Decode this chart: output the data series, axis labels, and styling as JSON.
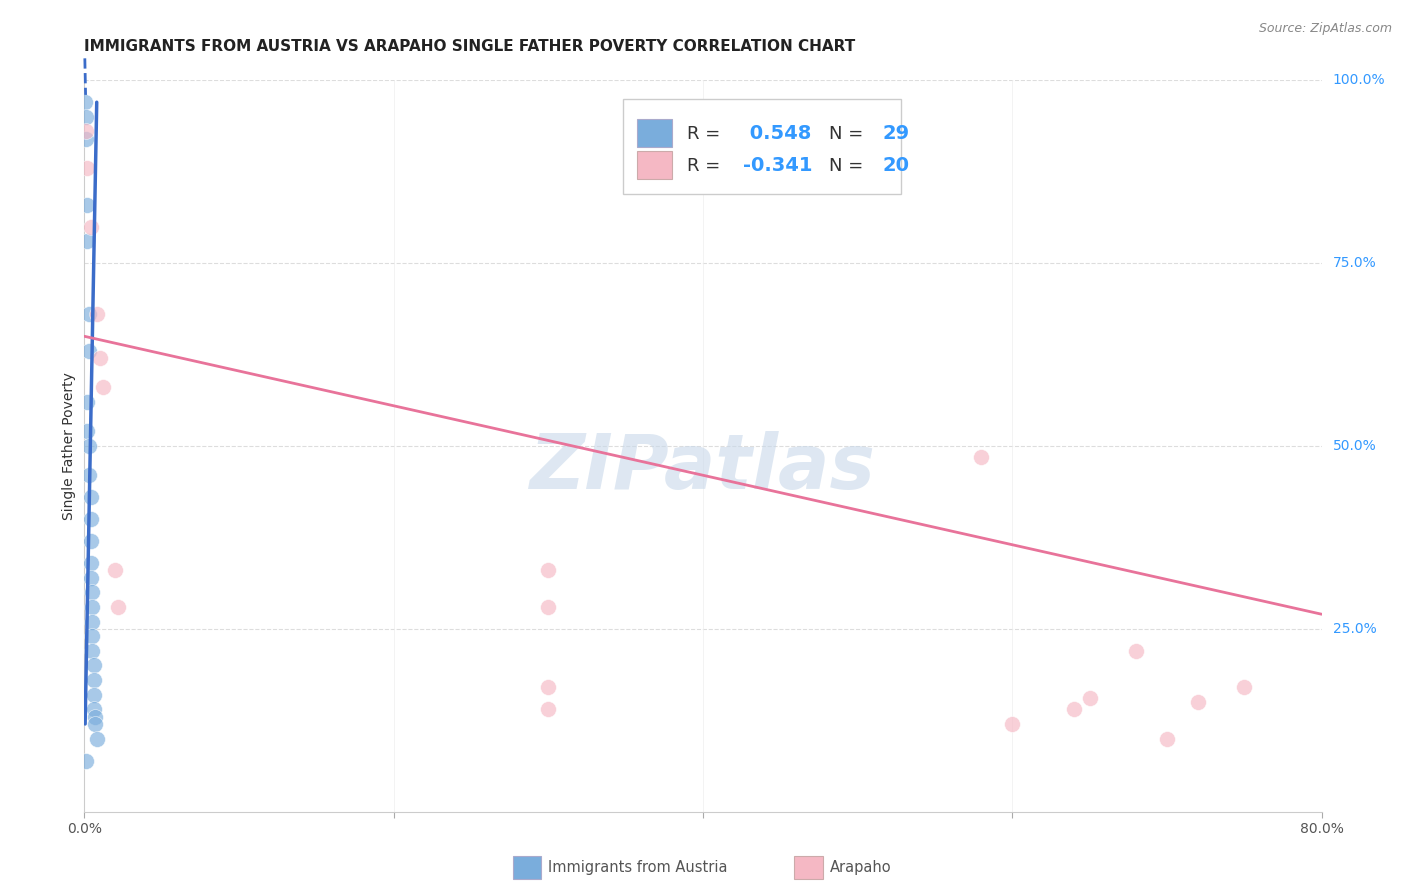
{
  "title": "IMMIGRANTS FROM AUSTRIA VS ARAPAHO SINGLE FATHER POVERTY CORRELATION CHART",
  "source": "Source: ZipAtlas.com",
  "ylabel": "Single Father Poverty",
  "xlim": [
    0,
    0.8
  ],
  "ylim": [
    0,
    1.0
  ],
  "xticks": [
    0.0,
    0.2,
    0.4,
    0.6,
    0.8
  ],
  "xtick_labels": [
    "0.0%",
    "",
    "",
    "",
    "80.0%"
  ],
  "ytick_labels_right": [
    "25.0%",
    "50.0%",
    "75.0%",
    "100.0%"
  ],
  "yticks_right": [
    0.25,
    0.5,
    0.75,
    1.0
  ],
  "grid_color": "#dddddd",
  "blue_color": "#7aaddc",
  "pink_color": "#f5b8c4",
  "blue_line_color": "#3b6cc9",
  "pink_line_color": "#e8739a",
  "blue_scatter": {
    "x": [
      0.0005,
      0.001,
      0.001,
      0.001,
      0.002,
      0.002,
      0.002,
      0.002,
      0.003,
      0.003,
      0.003,
      0.003,
      0.004,
      0.004,
      0.004,
      0.004,
      0.004,
      0.005,
      0.005,
      0.005,
      0.005,
      0.005,
      0.006,
      0.006,
      0.006,
      0.006,
      0.007,
      0.007,
      0.008
    ],
    "y": [
      0.97,
      0.95,
      0.92,
      0.07,
      0.83,
      0.78,
      0.56,
      0.52,
      0.68,
      0.63,
      0.5,
      0.46,
      0.43,
      0.4,
      0.37,
      0.34,
      0.32,
      0.3,
      0.28,
      0.26,
      0.24,
      0.22,
      0.2,
      0.18,
      0.16,
      0.14,
      0.13,
      0.12,
      0.1
    ]
  },
  "pink_scatter": {
    "x": [
      0.001,
      0.002,
      0.004,
      0.008,
      0.01,
      0.012,
      0.02,
      0.022,
      0.3,
      0.3,
      0.3,
      0.3,
      0.58,
      0.6,
      0.64,
      0.65,
      0.68,
      0.7,
      0.72,
      0.75
    ],
    "y": [
      0.93,
      0.88,
      0.8,
      0.68,
      0.62,
      0.58,
      0.33,
      0.28,
      0.33,
      0.28,
      0.17,
      0.14,
      0.485,
      0.12,
      0.14,
      0.155,
      0.22,
      0.1,
      0.15,
      0.17
    ]
  },
  "blue_trend": {
    "x": [
      0.0005,
      0.008
    ],
    "y": [
      0.12,
      0.97
    ]
  },
  "blue_dash": {
    "x": [
      0.0003,
      0.0008
    ],
    "y": [
      1.03,
      0.98
    ]
  },
  "pink_trend": {
    "x": [
      0.0,
      0.8
    ],
    "y": [
      0.65,
      0.27
    ]
  },
  "legend_blue_r_label": "R = ",
  "legend_blue_r_val": " 0.548",
  "legend_blue_n_label": "  N = ",
  "legend_blue_n_val": "29",
  "legend_pink_r_label": "R = ",
  "legend_pink_r_val": "-0.341",
  "legend_pink_n_label": "  N = ",
  "legend_pink_n_val": "20",
  "watermark": "ZIPatlas",
  "watermark_color": "#c8d8ea",
  "legend_label_blue": "Immigrants from Austria",
  "legend_label_pink": "Arapaho",
  "title_fontsize": 11,
  "axis_label_fontsize": 10,
  "tick_fontsize": 10,
  "label_color": "#555555",
  "blue_text_color": "#3399ff",
  "right_tick_color": "#3399ff"
}
